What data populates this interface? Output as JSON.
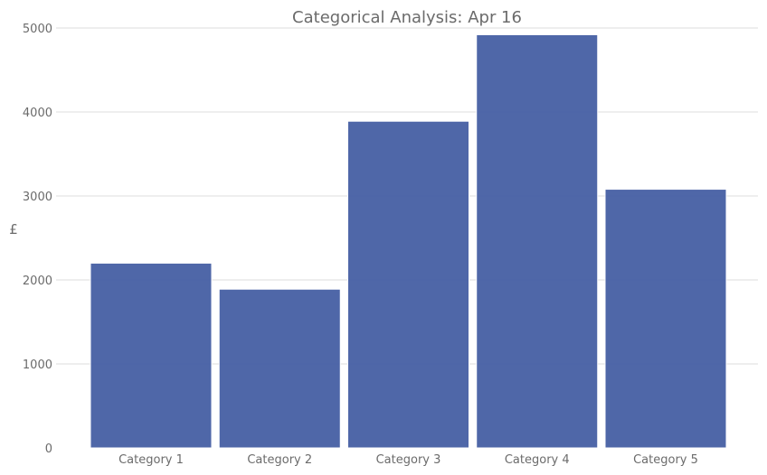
{
  "chart_data": {
    "type": "bar",
    "title": "Categorical Analysis: Apr 16",
    "xlabel": "",
    "ylabel": "£",
    "categories": [
      "Category 1",
      "Category 2",
      "Category 3",
      "Category 4",
      "Category 5"
    ],
    "values": [
      2200,
      1890,
      3890,
      4920,
      3080
    ],
    "ylim": [
      0,
      5000
    ],
    "yticks": [
      0,
      1000,
      2000,
      3000,
      4000,
      5000
    ],
    "grid": true,
    "legend": "none",
    "bar_color": "#4a63a6",
    "bar_edge_color": "#ffffff"
  }
}
